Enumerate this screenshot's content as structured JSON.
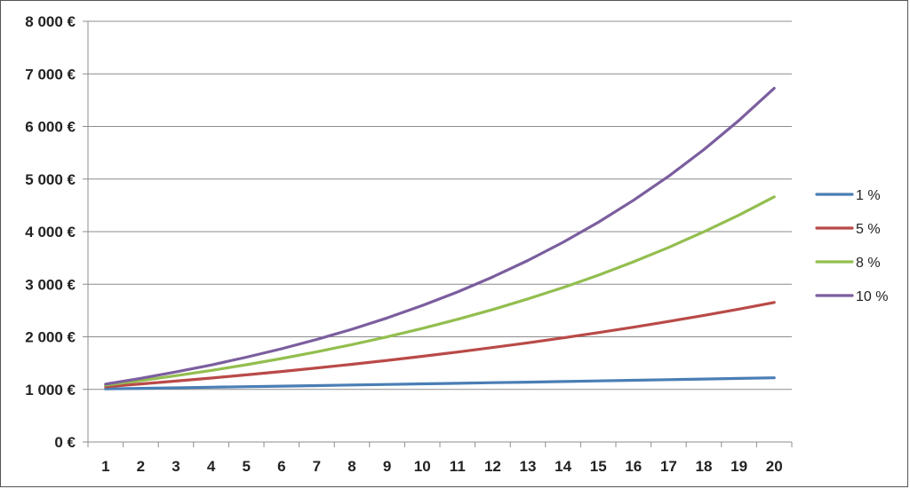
{
  "chart_data": {
    "type": "line",
    "title": "",
    "xlabel": "",
    "ylabel": "",
    "x": [
      1,
      2,
      3,
      4,
      5,
      6,
      7,
      8,
      9,
      10,
      11,
      12,
      13,
      14,
      15,
      16,
      17,
      18,
      19,
      20
    ],
    "xtick_labels": [
      "1",
      "2",
      "3",
      "4",
      "5",
      "6",
      "7",
      "8",
      "9",
      "10",
      "11",
      "12",
      "13",
      "14",
      "15",
      "16",
      "17",
      "18",
      "19",
      "20"
    ],
    "ylim": [
      0,
      8000
    ],
    "yticks": [
      0,
      1000,
      2000,
      3000,
      4000,
      5000,
      6000,
      7000,
      8000
    ],
    "ytick_labels": [
      "0 €",
      "1 000 €",
      "2 000 €",
      "3 000 €",
      "4 000 €",
      "5 000 €",
      "6 000 €",
      "7 000 €",
      "8 000 €"
    ],
    "grid": "horizontal",
    "legend_position": "right",
    "series": [
      {
        "name": "1 %",
        "color": "#4a7eb5",
        "values": [
          1010,
          1020,
          1030,
          1041,
          1051,
          1062,
          1072,
          1083,
          1094,
          1105,
          1116,
          1127,
          1138,
          1149,
          1161,
          1173,
          1184,
          1196,
          1208,
          1220
        ]
      },
      {
        "name": "5 %",
        "color": "#b94a48",
        "values": [
          1050,
          1103,
          1158,
          1216,
          1276,
          1340,
          1407,
          1477,
          1551,
          1629,
          1710,
          1796,
          1886,
          1980,
          2079,
          2183,
          2292,
          2407,
          2527,
          2653
        ]
      },
      {
        "name": "8 %",
        "color": "#93be4f",
        "values": [
          1080,
          1166,
          1260,
          1360,
          1469,
          1587,
          1714,
          1851,
          1999,
          2159,
          2332,
          2518,
          2720,
          2937,
          3172,
          3426,
          3700,
          3996,
          4316,
          4661
        ]
      },
      {
        "name": "10 %",
        "color": "#7b5e9e",
        "values": [
          1100,
          1210,
          1331,
          1464,
          1611,
          1772,
          1949,
          2144,
          2358,
          2594,
          2853,
          3138,
          3452,
          3797,
          4177,
          4595,
          5054,
          5560,
          6116,
          6727
        ]
      }
    ]
  }
}
